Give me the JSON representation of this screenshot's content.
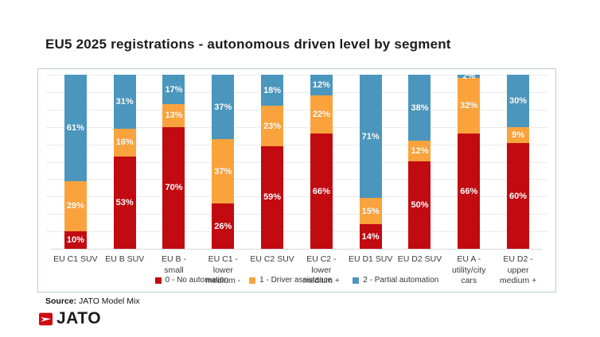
{
  "title": "EU5 2025 registrations - autonomous driven level by segment",
  "source": {
    "label": "Source:",
    "text": " JATO Model Mix"
  },
  "footer": {
    "logo_text": "JATO"
  },
  "colors": {
    "no_automation_red": "#c20a11",
    "driver_assistance_orange": "#faa33c",
    "partial_automation_blue": "#4b96bd",
    "chart_border": "#b9cfd9",
    "gridline": "#ebebeb"
  },
  "chart_data": {
    "type": "bar",
    "stacked": true,
    "percent_labels": true,
    "grid": true,
    "legend_position": "bottom",
    "ylim": [
      0,
      100
    ],
    "categories": [
      "EU C1 SUV",
      "EU B SUV",
      "EU B - small",
      "EU C1 - lower medium -",
      "EU C2 SUV",
      "EU C2 - lower medium +",
      "EU D1 SUV",
      "EU D2 SUV",
      "EU A - utility/city cars",
      "EU D2 - upper medium +"
    ],
    "series": [
      {
        "name": "0 - No automation",
        "color": "#c20a11",
        "values": [
          10,
          53,
          70,
          26,
          59,
          66,
          14,
          50,
          66,
          60
        ]
      },
      {
        "name": "1 - Driver assistance",
        "color": "#faa33c",
        "values": [
          29,
          16,
          13,
          37,
          23,
          22,
          15,
          12,
          32,
          9
        ]
      },
      {
        "name": "2 - Partial automation",
        "color": "#4b96bd",
        "values": [
          61,
          31,
          17,
          37,
          18,
          12,
          71,
          38,
          2,
          30
        ]
      }
    ]
  }
}
